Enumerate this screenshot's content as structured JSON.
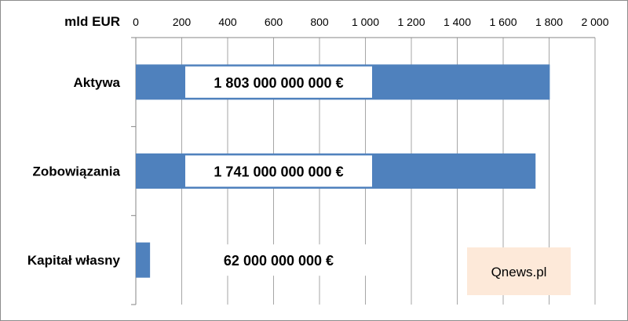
{
  "chart_data": {
    "type": "bar",
    "orientation": "horizontal",
    "title": "",
    "xlabel": "mld EUR",
    "ylabel": "",
    "xlim": [
      0,
      2000
    ],
    "x_ticks": [
      0,
      200,
      400,
      600,
      800,
      1000,
      1200,
      1400,
      1600,
      1800,
      2000
    ],
    "x_tick_labels": [
      "0",
      "200",
      "400",
      "600",
      "800",
      "1 000",
      "1 200",
      "1 400",
      "1 600",
      "1 800",
      "2 000"
    ],
    "grid": "vertical",
    "categories": [
      "Aktywa",
      "Zobowiązania",
      "Kapitał własny"
    ],
    "values": [
      1803,
      1741,
      62
    ],
    "data_labels": [
      "1 803 000 000 000 €",
      "1 741 000 000 000 €",
      "62 000 000 000 €"
    ],
    "bar_color": "#4f81bd",
    "watermark": "Qnews.pl",
    "watermark_color": "#fde9d9"
  }
}
